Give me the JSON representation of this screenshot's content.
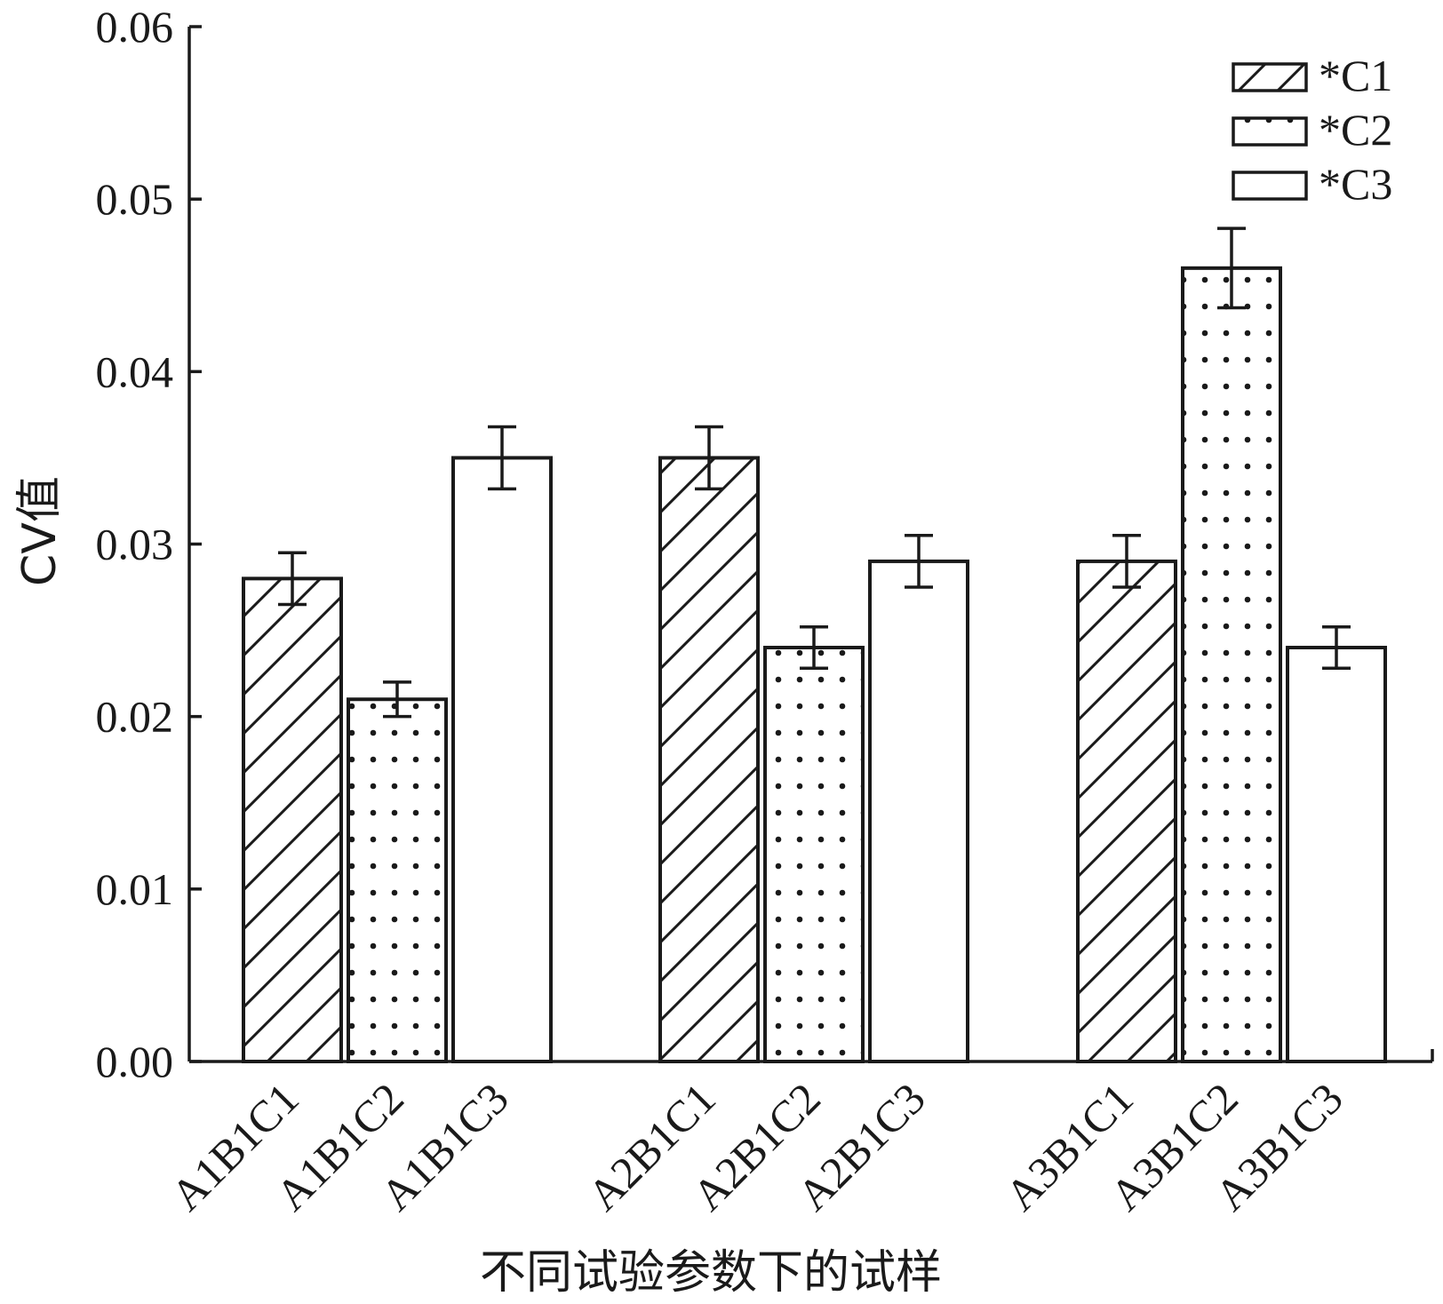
{
  "chart_data": {
    "type": "bar",
    "title": "",
    "xlabel": "不同试验参数下的试样",
    "ylabel": "CV值",
    "ylim": [
      0,
      0.06
    ],
    "yticks": [
      "0.00",
      "0.01",
      "0.02",
      "0.03",
      "0.04",
      "0.05",
      "0.06"
    ],
    "grid": false,
    "legend_position": "top-right",
    "series": [
      {
        "name": "*C1",
        "pattern": "diagonal-hatch",
        "color": "#1a1a1a"
      },
      {
        "name": "*C2",
        "pattern": "dots",
        "color": "#1a1a1a"
      },
      {
        "name": "*C3",
        "pattern": "none",
        "color": "#1a1a1a"
      }
    ],
    "bars": [
      {
        "label": "A1B1C1",
        "series": 0,
        "group": 0,
        "value": 0.028,
        "error": 0.0015
      },
      {
        "label": "A1B1C2",
        "series": 1,
        "group": 0,
        "value": 0.021,
        "error": 0.001
      },
      {
        "label": "A1B1C3",
        "series": 2,
        "group": 0,
        "value": 0.035,
        "error": 0.0018
      },
      {
        "label": "A2B1C1",
        "series": 0,
        "group": 1,
        "value": 0.035,
        "error": 0.0018
      },
      {
        "label": "A2B1C2",
        "series": 1,
        "group": 1,
        "value": 0.024,
        "error": 0.0012
      },
      {
        "label": "A2B1C3",
        "series": 2,
        "group": 1,
        "value": 0.029,
        "error": 0.0015
      },
      {
        "label": "A3B1C1",
        "series": 0,
        "group": 2,
        "value": 0.029,
        "error": 0.0015
      },
      {
        "label": "A3B1C2",
        "series": 1,
        "group": 2,
        "value": 0.046,
        "error": 0.0023
      },
      {
        "label": "A3B1C3",
        "series": 2,
        "group": 2,
        "value": 0.024,
        "error": 0.0012
      }
    ]
  }
}
